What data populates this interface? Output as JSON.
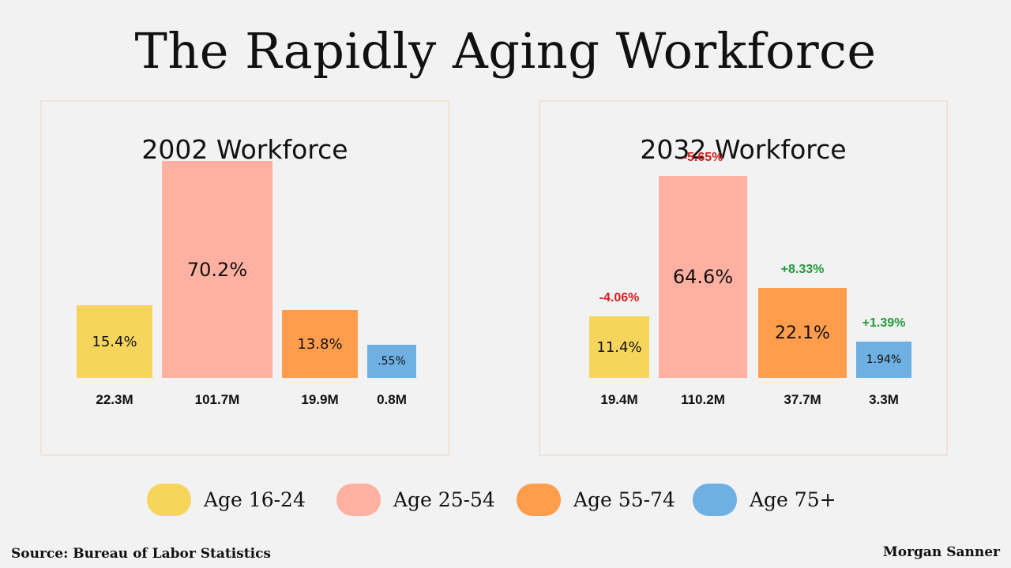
{
  "title": "The Rapidly Aging Workforce",
  "colors": {
    "age_16_24": "#f6d55c",
    "age_25_54": "#ffb1a1",
    "age_55_74": "#ff9d4d",
    "age_75_plus": "#6fb0e2",
    "decrease": "#d21f1f",
    "increase": "#1f9a3c"
  },
  "chart_data": [
    {
      "type": "bar",
      "title": "2002 Workforce",
      "categories": [
        "Age 16-24",
        "Age 25-54",
        "Age 55-74",
        "Age 75+"
      ],
      "values": [
        15.4,
        70.2,
        13.8,
        0.55
      ],
      "value_labels": [
        "15.4%",
        "70.2%",
        "13.8%",
        ".55%"
      ],
      "counts": [
        "22.3M",
        "101.7M",
        "19.9M",
        "0.8M"
      ]
    },
    {
      "type": "bar",
      "title": "2032 Workforce",
      "categories": [
        "Age 16-24",
        "Age 25-54",
        "Age 55-74",
        "Age 75+"
      ],
      "values": [
        11.4,
        64.6,
        22.1,
        1.94
      ],
      "value_labels": [
        "11.4%",
        "64.6%",
        "22.1%",
        "1.94%"
      ],
      "counts": [
        "19.4M",
        "110.2M",
        "37.7M",
        "3.3M"
      ],
      "changes": [
        "-4.06%",
        "-5.65%",
        "+8.33%",
        "+1.39%"
      ]
    }
  ],
  "legend": [
    {
      "label": "Age 16-24",
      "color_key": "age_16_24"
    },
    {
      "label": "Age 25-54",
      "color_key": "age_25_54"
    },
    {
      "label": "Age 55-74",
      "color_key": "age_55_74"
    },
    {
      "label": "Age 75+",
      "color_key": "age_75_plus"
    }
  ],
  "source": "Source: Bureau of Labor Statistics",
  "author": "Morgan Sanner"
}
